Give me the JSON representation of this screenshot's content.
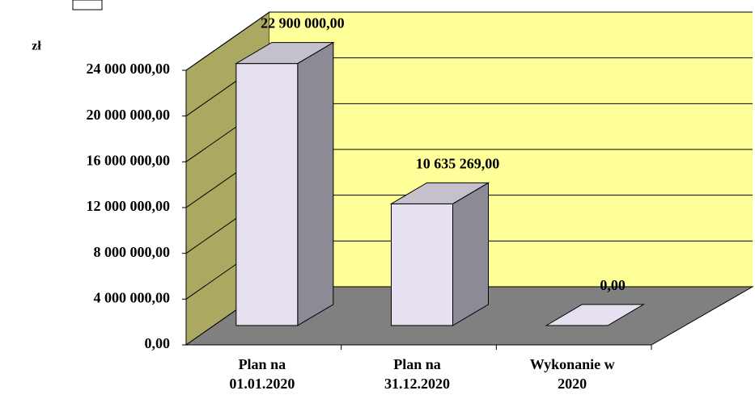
{
  "chart_data": {
    "type": "bar3d",
    "y_label": "zł",
    "categories": [
      [
        "Plan na",
        "01.01.2020"
      ],
      [
        "Plan na",
        "31.12.2020"
      ],
      [
        "Wykonanie w",
        "2020"
      ]
    ],
    "values": [
      22900000,
      10635269,
      0
    ],
    "value_labels": [
      "22 900 000,00",
      "10 635 269,00",
      "0,00"
    ],
    "ylim": [
      0,
      24000000
    ],
    "yticks": [
      {
        "value": 0,
        "label": "0,00"
      },
      {
        "value": 4000000,
        "label": "4 000 000,00"
      },
      {
        "value": 8000000,
        "label": "8 000 000,00"
      },
      {
        "value": 12000000,
        "label": "12 000 000,00"
      },
      {
        "value": 16000000,
        "label": "16 000 000,00"
      },
      {
        "value": 20000000,
        "label": "20 000 000,00"
      },
      {
        "value": 24000000,
        "label": "24 000 000,00"
      }
    ],
    "grid": true,
    "color": "#e6e0f0"
  }
}
